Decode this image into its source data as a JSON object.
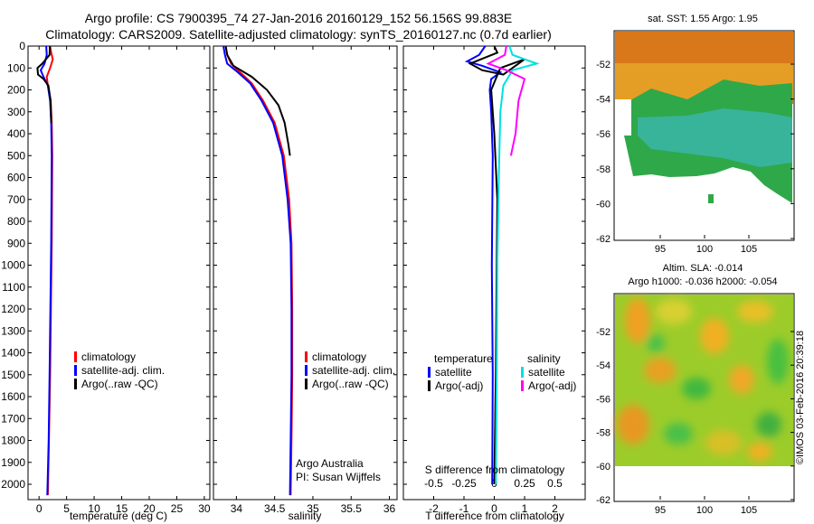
{
  "header": {
    "title_line1": "Argo profile: CS 7900395_74 27-Jan-2016 20160129_152 56.156S 99.883E",
    "title_line2": "Climatology: CARS2009. Satellite-adjusted climatology: synTS_20160127.nc (0.7d earlier)"
  },
  "sst_map": {
    "title": "sat. SST: 1.55 Argo: 1.95",
    "y_ticks": [
      "-52",
      "-54",
      "-56",
      "-58",
      "-60",
      "-62"
    ],
    "x_ticks": [
      "95",
      "100",
      "105"
    ]
  },
  "sla_map": {
    "title1": "Altim. SLA: -0.014",
    "title2": "Argo h1000: -0.036 h2000: -0.054",
    "y_ticks": [
      "-52",
      "-54",
      "-56",
      "-58",
      "-60",
      "-62"
    ],
    "x_ticks": [
      "95",
      "100",
      "105"
    ]
  },
  "credit": {
    "left_line1": "Argo Australia",
    "left_line2": "PI: Susan Wijffels",
    "stamp": "©IMOS 03-Feb-2016 20:39:18"
  },
  "colors": {
    "climatology": "#ff0000",
    "satellite_adj": "#0000ff",
    "argo": "#000000",
    "satellite_s": "#00e0e0",
    "argo_adj_s": "#ff00ff"
  },
  "chart_data": [
    {
      "type": "line",
      "xlabel": "temperature (deg C)",
      "ylabel": "",
      "xlim": [
        -2,
        31
      ],
      "ylim": [
        2070,
        0
      ],
      "x_ticks": [
        0,
        5,
        10,
        15,
        20,
        25,
        30
      ],
      "y_ticks": [
        0,
        100,
        200,
        300,
        400,
        500,
        600,
        700,
        800,
        900,
        1000,
        1100,
        1200,
        1300,
        1400,
        1500,
        1600,
        1700,
        1800,
        1900,
        2000
      ],
      "legend": [
        "climatology",
        "satellite-adj. clim.",
        "Argo(..raw -QC)"
      ],
      "legend_position": "lower-middle",
      "series": [
        {
          "name": "climatology",
          "color": "#ff0000",
          "points": [
            [
              2.0,
              0
            ],
            [
              2.2,
              30
            ],
            [
              2.5,
              60
            ],
            [
              2.0,
              100
            ],
            [
              1.4,
              140
            ],
            [
              1.6,
              180
            ],
            [
              2.1,
              250
            ],
            [
              2.3,
              350
            ],
            [
              2.4,
              500
            ],
            [
              2.35,
              700
            ],
            [
              2.3,
              900
            ],
            [
              2.15,
              1200
            ],
            [
              2.0,
              1500
            ],
            [
              1.8,
              1800
            ],
            [
              1.6,
              2050
            ]
          ]
        },
        {
          "name": "satellite-adj. clim.",
          "color": "#0000ff",
          "points": [
            [
              1.3,
              0
            ],
            [
              1.4,
              40
            ],
            [
              1.0,
              80
            ],
            [
              0.3,
              110
            ],
            [
              0.8,
              140
            ],
            [
              1.6,
              180
            ],
            [
              2.0,
              250
            ],
            [
              2.2,
              350
            ],
            [
              2.3,
              500
            ],
            [
              2.25,
              700
            ],
            [
              2.2,
              900
            ],
            [
              2.05,
              1200
            ],
            [
              1.9,
              1500
            ],
            [
              1.75,
              1800
            ],
            [
              1.5,
              2050
            ]
          ]
        },
        {
          "name": "Argo(..raw -QC)",
          "color": "#000000",
          "points": [
            [
              1.95,
              0
            ],
            [
              1.9,
              40
            ],
            [
              0.6,
              80
            ],
            [
              -0.3,
              100
            ],
            [
              -0.2,
              130
            ],
            [
              0.8,
              150
            ],
            [
              1.7,
              180
            ],
            [
              2.1,
              250
            ],
            [
              2.2,
              350
            ]
          ]
        }
      ]
    },
    {
      "type": "line",
      "xlabel": "salinity",
      "ylabel": "",
      "xlim": [
        33.7,
        36.1
      ],
      "ylim": [
        2070,
        0
      ],
      "x_ticks": [
        34,
        34.5,
        35,
        35.5,
        36
      ],
      "legend": [
        "climatology",
        "satellite-adj. clim.",
        "Argo(..raw -QC)"
      ],
      "legend_position": "lower-middle",
      "series": [
        {
          "name": "climatology",
          "color": "#ff0000",
          "points": [
            [
              33.86,
              0
            ],
            [
              33.88,
              40
            ],
            [
              33.93,
              80
            ],
            [
              34.05,
              120
            ],
            [
              34.2,
              170
            ],
            [
              34.35,
              250
            ],
            [
              34.5,
              350
            ],
            [
              34.62,
              500
            ],
            [
              34.69,
              700
            ],
            [
              34.72,
              900
            ],
            [
              34.73,
              1200
            ],
            [
              34.73,
              1500
            ],
            [
              34.72,
              1800
            ],
            [
              34.71,
              2050
            ]
          ]
        },
        {
          "name": "satellite-adj. clim.",
          "color": "#0000ff",
          "points": [
            [
              33.83,
              0
            ],
            [
              33.85,
              40
            ],
            [
              33.88,
              80
            ],
            [
              34.02,
              120
            ],
            [
              34.18,
              170
            ],
            [
              34.33,
              250
            ],
            [
              34.48,
              350
            ],
            [
              34.6,
              500
            ],
            [
              34.67,
              700
            ],
            [
              34.71,
              900
            ],
            [
              34.72,
              1200
            ],
            [
              34.72,
              1500
            ],
            [
              34.71,
              1800
            ],
            [
              34.7,
              2050
            ]
          ]
        },
        {
          "name": "Argo(..raw -QC)",
          "color": "#000000",
          "points": [
            [
              33.86,
              0
            ],
            [
              33.88,
              40
            ],
            [
              33.96,
              90
            ],
            [
              34.2,
              140
            ],
            [
              34.4,
              200
            ],
            [
              34.55,
              270
            ],
            [
              34.63,
              350
            ],
            [
              34.68,
              450
            ],
            [
              34.7,
              500
            ]
          ]
        }
      ]
    },
    {
      "type": "line",
      "xlabel": "T difference from climatology",
      "xlabel_top": "S difference from climatology",
      "xlim": [
        -3,
        3
      ],
      "ylim": [
        2070,
        0
      ],
      "x_ticks": [
        -2,
        -1,
        0,
        1,
        2
      ],
      "x_ticks_s": [
        -0.5,
        -0.25,
        0,
        0.25,
        0.5
      ],
      "legend_headers": [
        "temperature",
        "salinity"
      ],
      "legend": [
        "satellite",
        "Argo(-adj)",
        "satellite",
        "Argo(-adj)"
      ],
      "legend_position": "lower-middle",
      "series": [
        {
          "name": "satellite",
          "group": "temperature",
          "color": "#0000ff",
          "points": [
            [
              -0.3,
              0
            ],
            [
              -0.5,
              40
            ],
            [
              -0.9,
              70
            ],
            [
              -0.4,
              90
            ],
            [
              0.2,
              120
            ],
            [
              -0.1,
              150
            ],
            [
              -0.15,
              200
            ],
            [
              -0.1,
              300
            ],
            [
              -0.05,
              500
            ],
            [
              -0.08,
              1000
            ],
            [
              -0.05,
              1500
            ],
            [
              -0.07,
              2000
            ]
          ]
        },
        {
          "name": "Argo(-adj)",
          "group": "temperature",
          "color": "#000000",
          "points": [
            [
              0.0,
              0
            ],
            [
              0.1,
              30
            ],
            [
              -0.8,
              80
            ],
            [
              -0.4,
              110
            ],
            [
              0.3,
              130
            ],
            [
              1.0,
              60
            ],
            [
              0.2,
              100
            ],
            [
              -0.1,
              200
            ],
            [
              0.0,
              400
            ],
            [
              0.1,
              700
            ],
            [
              0.08,
              1000
            ],
            [
              0.05,
              1500
            ],
            [
              0.0,
              2000
            ]
          ]
        },
        {
          "name": "satellite",
          "group": "salinity",
          "color": "#00e0e0",
          "points": [
            [
              0.5,
              0
            ],
            [
              0.6,
              40
            ],
            [
              1.4,
              80
            ],
            [
              0.6,
              110
            ],
            [
              0.3,
              180
            ],
            [
              0.2,
              300
            ],
            [
              0.15,
              600
            ],
            [
              0.1,
              1000
            ],
            [
              0.08,
              1500
            ],
            [
              0.05,
              2000
            ]
          ]
        },
        {
          "name": "Argo(-adj)",
          "group": "salinity",
          "color": "#ff00ff",
          "points": [
            [
              0.4,
              0
            ],
            [
              0.35,
              40
            ],
            [
              -0.2,
              80
            ],
            [
              0.4,
              110
            ],
            [
              1.0,
              150
            ],
            [
              0.8,
              250
            ],
            [
              0.7,
              400
            ],
            [
              0.55,
              500
            ]
          ]
        }
      ]
    }
  ]
}
